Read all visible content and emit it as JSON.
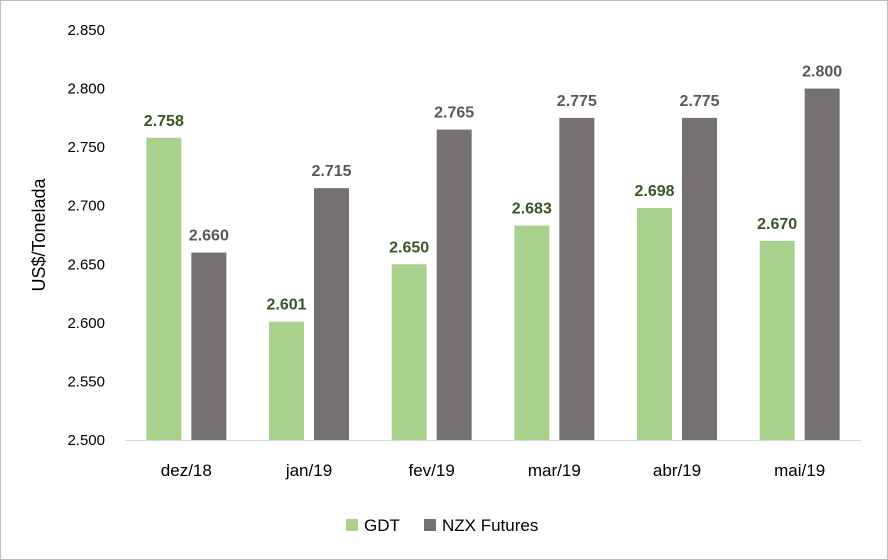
{
  "chart_data": {
    "type": "bar",
    "title": "",
    "xlabel": "",
    "ylabel": "US$/Tonelada",
    "ylim": [
      2500,
      2850
    ],
    "yticks": [
      "2.500",
      "2.550",
      "2.600",
      "2.650",
      "2.700",
      "2.750",
      "2.800",
      "2.850"
    ],
    "categories": [
      "dez/18",
      "jan/19",
      "fev/19",
      "mar/19",
      "abr/19",
      "mai/19"
    ],
    "series": [
      {
        "name": "GDT",
        "color": "#a9d18e",
        "label_color": "#385723",
        "values": [
          2758,
          2601,
          2650,
          2683,
          2698,
          2670
        ],
        "labels": [
          "2.758",
          "2.601",
          "2.650",
          "2.683",
          "2.698",
          "2.670"
        ]
      },
      {
        "name": "NZX Futures",
        "color": "#767171",
        "label_color": "#595959",
        "values": [
          2660,
          2715,
          2765,
          2775,
          2775,
          2800
        ],
        "labels": [
          "2.660",
          "2.715",
          "2.765",
          "2.775",
          "2.775",
          "2.800"
        ]
      }
    ],
    "grid": false,
    "legend_position": "bottom"
  }
}
